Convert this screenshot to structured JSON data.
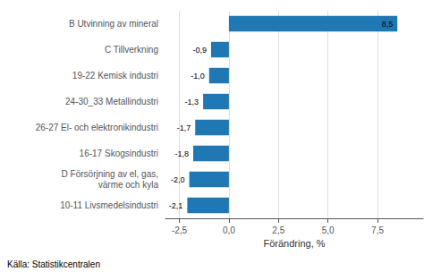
{
  "chart_data": {
    "type": "bar",
    "orientation": "horizontal",
    "categories": [
      "10-11 Livsmedelsindustri",
      "D Försörjning av el, gas,\nvärme och kyla",
      "16-17 Skogsindustri",
      "26-27 El- och elektronikindustri",
      "24-30_33 Metallindustri",
      "19-22 Kemisk industri",
      "C Tillverkning",
      "B Utvinning av mineral"
    ],
    "values": [
      -2.1,
      -2.0,
      -1.8,
      -1.7,
      -1.3,
      -1.0,
      -0.9,
      8.5
    ],
    "value_labels": [
      "-2,1",
      "-2,0",
      "-1,8",
      "-1,7",
      "-1,3",
      "-1,0",
      "-0,9",
      "8,5"
    ],
    "data_labels": true,
    "color": "#1f77b4",
    "xlabel": "Förändring, %",
    "xlim": [
      -3.2,
      9.8
    ],
    "xticks": [
      {
        "value": -2.5,
        "label": "-2,5"
      },
      {
        "value": 0.0,
        "label": "0,0"
      },
      {
        "value": 2.5,
        "label": "2,5"
      },
      {
        "value": 5.0,
        "label": "5,0"
      },
      {
        "value": 7.5,
        "label": "7,5"
      }
    ],
    "grid": true,
    "annotation": "Källa: Statistikcentralen"
  }
}
